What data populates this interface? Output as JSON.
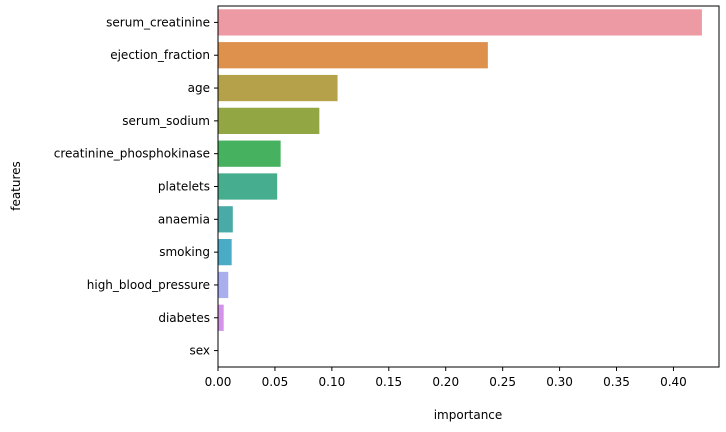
{
  "chart_data": {
    "type": "bar",
    "orientation": "horizontal",
    "categories": [
      "serum_creatinine",
      "ejection_fraction",
      "age",
      "serum_sodium",
      "creatinine_phosphokinase",
      "platelets",
      "anaemia",
      "smoking",
      "high_blood_pressure",
      "diabetes",
      "sex"
    ],
    "values": [
      0.425,
      0.237,
      0.105,
      0.089,
      0.055,
      0.052,
      0.013,
      0.012,
      0.009,
      0.005,
      0.0
    ],
    "colors": [
      "#ee9aa4",
      "#de904d",
      "#b5a14a",
      "#92a744",
      "#46b15e",
      "#46ad8e",
      "#49aaa8",
      "#4aabc6",
      "#a9aeee",
      "#d493ea",
      "#e993d8"
    ],
    "xlabel": "importance",
    "ylabel": "features",
    "xlim": [
      0,
      0.44
    ],
    "xticks": [
      0.0,
      0.05,
      0.1,
      0.15,
      0.2,
      0.25,
      0.3,
      0.35,
      0.4
    ],
    "xtick_labels": [
      "0.00",
      "0.05",
      "0.10",
      "0.15",
      "0.20",
      "0.25",
      "0.30",
      "0.35",
      "0.40"
    ],
    "grid": false,
    "legend": "none"
  }
}
